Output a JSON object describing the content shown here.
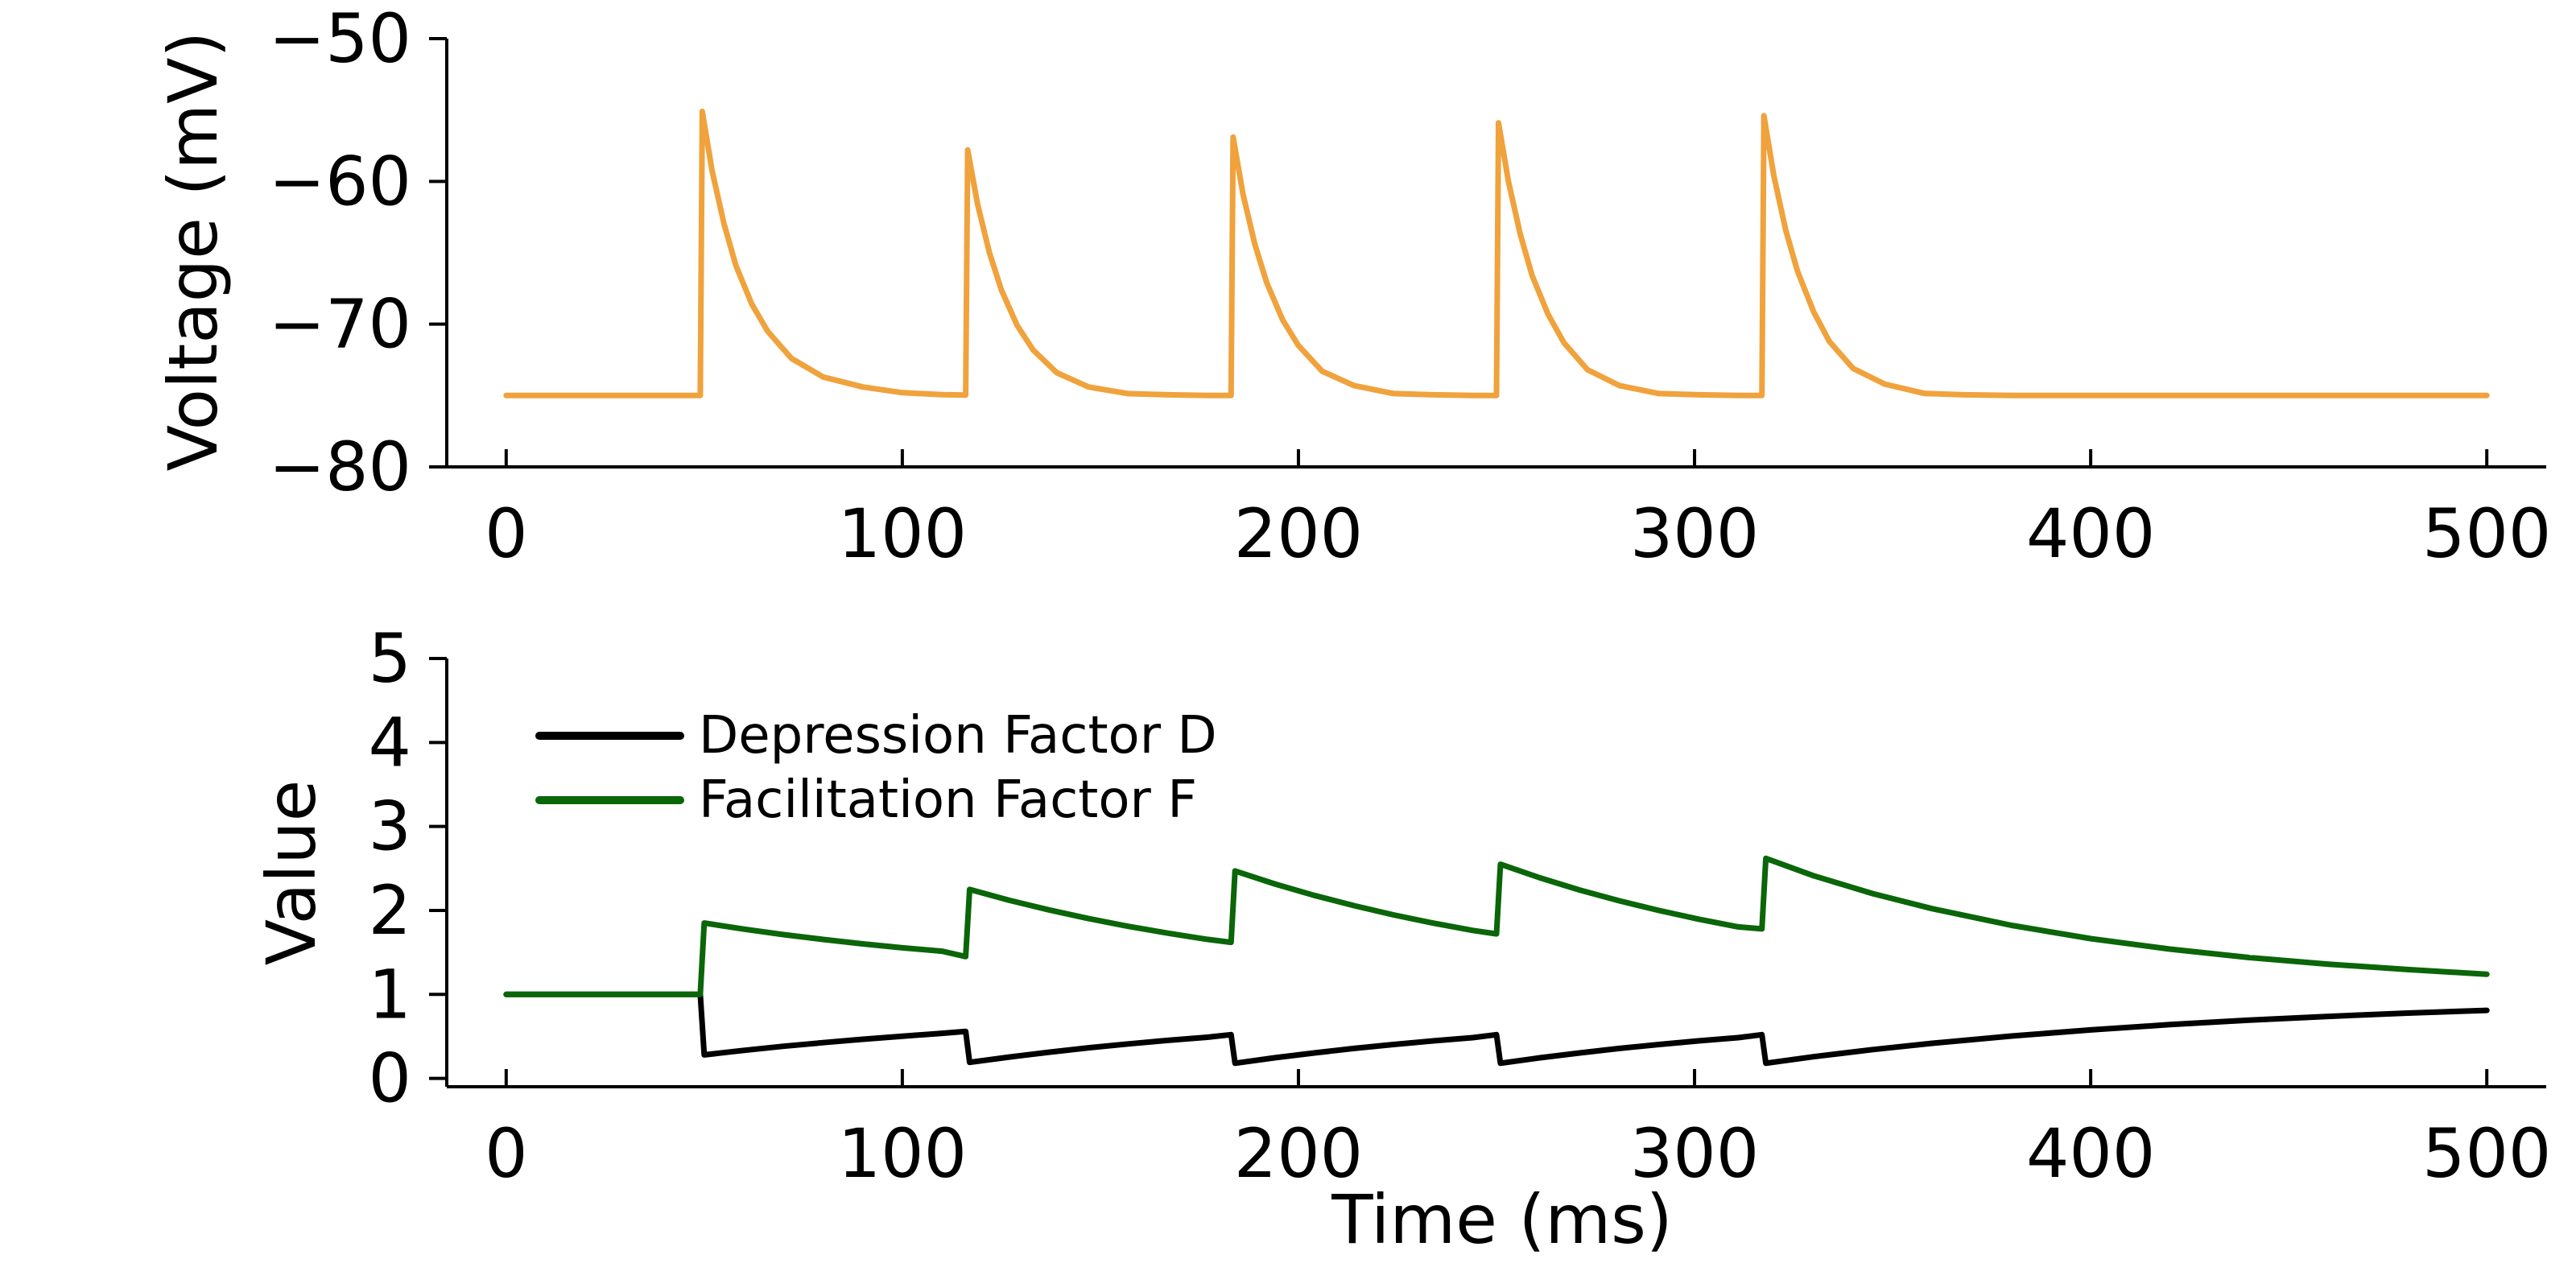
{
  "chart_data": [
    {
      "type": "line",
      "title": "",
      "xlabel": "",
      "ylabel": "Voltage (mV)",
      "xlim": [
        -15,
        515
      ],
      "ylim": [
        -80,
        -50
      ],
      "xticks": [
        0,
        100,
        200,
        300,
        400,
        500
      ],
      "xtick_labels": [
        "0",
        "100",
        "200",
        "300",
        "400",
        "500"
      ],
      "yticks": [
        -80,
        -70,
        -60,
        -50
      ],
      "ytick_labels": [
        "−80",
        "−70",
        "−60",
        "−50"
      ],
      "grid": false,
      "legend": "none",
      "spike_times": [
        49.5,
        116.5,
        183.5,
        250.5,
        317.5
      ],
      "spike_peaks": [
        -55.1,
        -57.8,
        -56.9,
        -55.9,
        -55.4
      ],
      "baseline": -75,
      "series": [
        {
          "color": "#f0a23c",
          "x": [
            0,
            49.0,
            49.5,
            52,
            55,
            58,
            62,
            66,
            72,
            80,
            90,
            100,
            110,
            116.0,
            116.5,
            119,
            122,
            125,
            129,
            133,
            139,
            147,
            157,
            167,
            177,
            183.0,
            183.5,
            186,
            189,
            192,
            196,
            200,
            206,
            214,
            224,
            234,
            244,
            250.0,
            250.5,
            253,
            256,
            259,
            263,
            267,
            273,
            281,
            291,
            301,
            311,
            317.0,
            317.5,
            320,
            323,
            326,
            330,
            334,
            340,
            348,
            358,
            368,
            380,
            400,
            500
          ],
          "y": [
            -75,
            -75,
            -55.1,
            -59.3,
            -63.0,
            -65.9,
            -68.6,
            -70.5,
            -72.4,
            -73.7,
            -74.4,
            -74.8,
            -74.94,
            -74.97,
            -57.8,
            -61.6,
            -65.0,
            -67.6,
            -70.1,
            -71.8,
            -73.4,
            -74.4,
            -74.87,
            -74.95,
            -74.99,
            -75,
            -56.9,
            -60.9,
            -64.4,
            -67.1,
            -69.7,
            -71.5,
            -73.3,
            -74.3,
            -74.86,
            -74.95,
            -74.99,
            -75,
            -55.9,
            -60.0,
            -63.7,
            -66.6,
            -69.3,
            -71.3,
            -73.2,
            -74.3,
            -74.86,
            -74.95,
            -74.99,
            -75,
            -55.4,
            -59.6,
            -63.4,
            -66.3,
            -69.1,
            -71.2,
            -73.1,
            -74.2,
            -74.85,
            -74.95,
            -74.99,
            -75,
            -75
          ]
        }
      ]
    },
    {
      "type": "line",
      "title": "",
      "xlabel": "Time (ms)",
      "ylabel": "Value",
      "xlim": [
        -15,
        515
      ],
      "ylim": [
        -0.1,
        5
      ],
      "xticks": [
        0,
        100,
        200,
        300,
        400,
        500
      ],
      "xtick_labels": [
        "0",
        "100",
        "200",
        "300",
        "400",
        "500"
      ],
      "yticks": [
        0,
        1,
        2,
        3,
        4,
        5
      ],
      "ytick_labels": [
        "0",
        "1",
        "2",
        "3",
        "4",
        "5"
      ],
      "grid": false,
      "legend": "top-left",
      "series": [
        {
          "name": "Depression Factor D",
          "color": "#000000",
          "x": [
            0,
            49.0,
            50.0,
            60,
            70,
            80,
            90,
            100,
            110,
            116.0,
            117.0,
            127,
            137,
            147,
            157,
            167,
            177,
            183.0,
            184.0,
            194,
            204,
            214,
            224,
            234,
            244,
            250.0,
            251.0,
            261,
            271,
            281,
            291,
            301,
            311,
            317.0,
            318.0,
            330,
            345,
            360,
            380,
            400,
            420,
            440,
            460,
            480,
            500
          ],
          "y": [
            1,
            1,
            0.28,
            0.333,
            0.382,
            0.425,
            0.466,
            0.502,
            0.537,
            0.56,
            0.19,
            0.254,
            0.311,
            0.364,
            0.41,
            0.452,
            0.49,
            0.52,
            0.18,
            0.245,
            0.303,
            0.356,
            0.403,
            0.446,
            0.485,
            0.52,
            0.18,
            0.245,
            0.303,
            0.356,
            0.403,
            0.446,
            0.485,
            0.52,
            0.18,
            0.258,
            0.343,
            0.418,
            0.504,
            0.577,
            0.64,
            0.693,
            0.738,
            0.777,
            0.81
          ]
        },
        {
          "name": "Facilitation Factor F",
          "color": "#0a6608",
          "x": [
            0,
            49.0,
            50.0,
            60,
            70,
            80,
            90,
            100,
            110,
            116.0,
            117.0,
            127,
            137,
            147,
            157,
            167,
            177,
            183.0,
            184.0,
            194,
            204,
            214,
            224,
            234,
            244,
            250.0,
            251.0,
            261,
            271,
            281,
            291,
            301,
            311,
            317.0,
            318.0,
            330,
            345,
            360,
            380,
            400,
            420,
            440,
            460,
            480,
            500
          ],
          "y": [
            1,
            1,
            1.85,
            1.777,
            1.712,
            1.654,
            1.602,
            1.555,
            1.514,
            1.45,
            2.25,
            2.12,
            2.006,
            1.903,
            1.811,
            1.729,
            1.655,
            1.62,
            2.47,
            2.316,
            2.179,
            2.057,
            1.947,
            1.849,
            1.762,
            1.72,
            2.55,
            2.388,
            2.243,
            2.114,
            1.999,
            1.896,
            1.804,
            1.78,
            2.62,
            2.414,
            2.2,
            2.021,
            1.822,
            1.664,
            1.539,
            1.439,
            1.36,
            1.296,
            1.24
          ]
        }
      ]
    }
  ]
}
